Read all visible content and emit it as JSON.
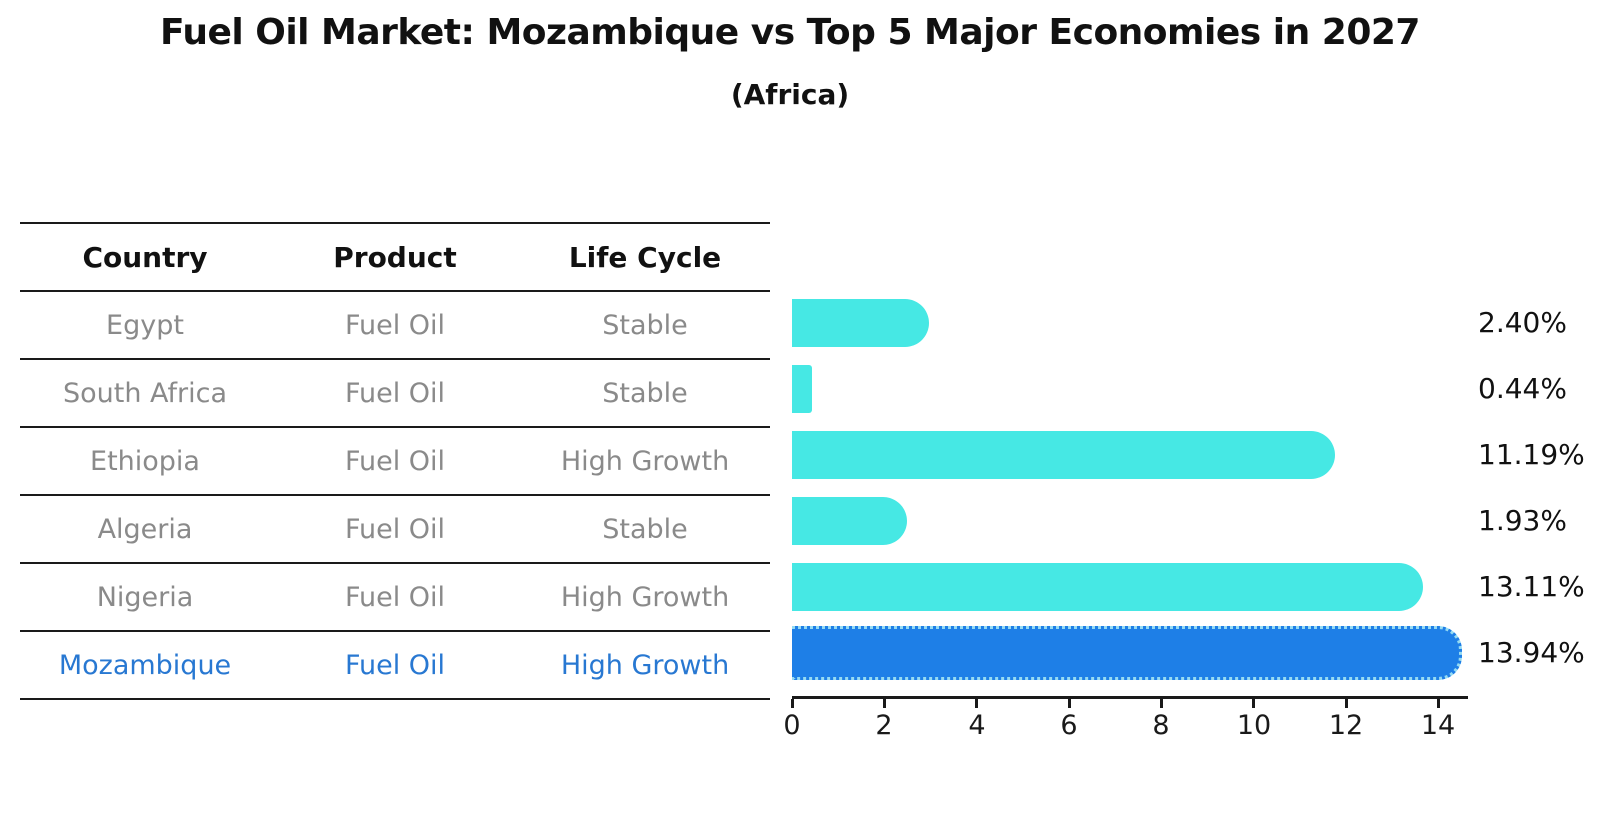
{
  "title": "Fuel Oil Market: Mozambique vs Top 5 Major Economies in 2027",
  "subtitle": "(Africa)",
  "table": {
    "headers": [
      "Country",
      "Product",
      "Life Cycle"
    ],
    "rows": [
      {
        "country": "Egypt",
        "product": "Fuel Oil",
        "life_cycle": "Stable",
        "highlight": false
      },
      {
        "country": "South Africa",
        "product": "Fuel Oil",
        "life_cycle": "Stable",
        "highlight": false
      },
      {
        "country": "Ethiopia",
        "product": "Fuel Oil",
        "life_cycle": "High Growth",
        "highlight": false
      },
      {
        "country": "Algeria",
        "product": "Fuel Oil",
        "life_cycle": "Stable",
        "highlight": false
      },
      {
        "country": "Nigeria",
        "product": "Fuel Oil",
        "life_cycle": "High Growth",
        "highlight": false
      },
      {
        "country": "Mozambique",
        "product": "Fuel Oil",
        "life_cycle": "High Growth",
        "highlight": true
      }
    ]
  },
  "chart_data": {
    "type": "bar",
    "orientation": "horizontal",
    "title": "Fuel Oil Market: Mozambique vs Top 5 Major Economies in 2027",
    "subtitle": "(Africa)",
    "categories": [
      "Egypt",
      "South Africa",
      "Ethiopia",
      "Algeria",
      "Nigeria",
      "Mozambique"
    ],
    "values": [
      2.4,
      0.44,
      11.19,
      1.93,
      13.11,
      13.94
    ],
    "value_labels": [
      "2.40%",
      "0.44%",
      "11.19%",
      "1.93%",
      "13.11%",
      "13.94%"
    ],
    "highlight_index": 5,
    "xlim": [
      0,
      14.6
    ],
    "x_ticks": [
      0,
      2,
      4,
      6,
      8,
      10,
      12,
      14
    ],
    "grid": false,
    "legend": false,
    "bar_color": "#46e8e4",
    "highlight_bar_color": "#1e7fe7",
    "highlight_border_color": "#96dbf2",
    "label_color": "#111111",
    "muted_text_color": "#8a8a8a",
    "highlight_text_color": "#2878d2"
  }
}
